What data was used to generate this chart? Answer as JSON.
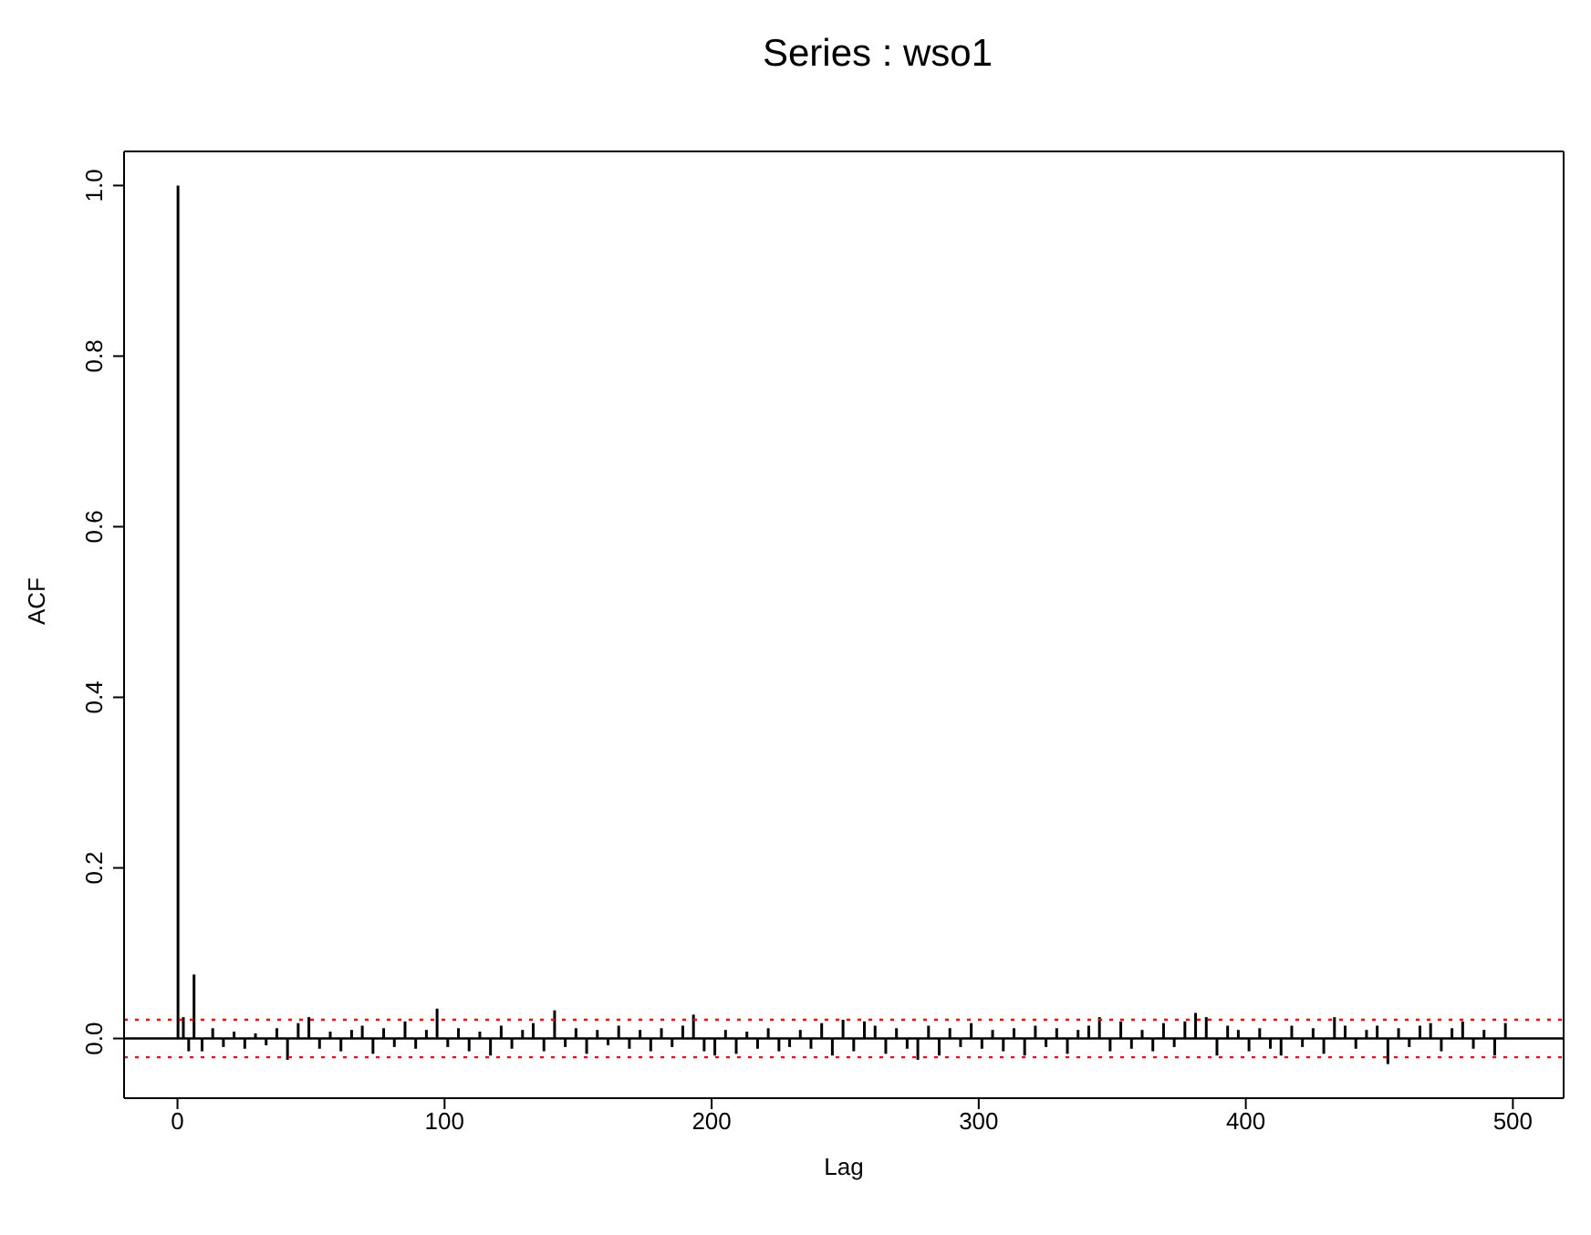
{
  "chart_data": {
    "type": "bar",
    "title": "Series : wso1",
    "xlabel": "Lag",
    "ylabel": "ACF",
    "x": [
      0,
      2,
      4,
      6,
      9,
      13,
      17,
      21,
      25,
      29,
      33,
      37,
      41,
      45,
      49,
      53,
      57,
      61,
      65,
      69,
      73,
      77,
      81,
      85,
      89,
      93,
      97,
      101,
      105,
      109,
      113,
      117,
      121,
      125,
      129,
      133,
      137,
      141,
      145,
      149,
      153,
      157,
      161,
      165,
      169,
      173,
      177,
      181,
      185,
      189,
      193,
      197,
      201,
      205,
      209,
      213,
      217,
      221,
      225,
      229,
      233,
      237,
      241,
      245,
      249,
      253,
      257,
      261,
      265,
      269,
      273,
      277,
      281,
      285,
      289,
      293,
      297,
      301,
      305,
      309,
      313,
      317,
      321,
      325,
      329,
      333,
      337,
      341,
      345,
      349,
      353,
      357,
      361,
      365,
      369,
      373,
      377,
      381,
      385,
      389,
      393,
      397,
      401,
      405,
      409,
      413,
      417,
      421,
      425,
      429,
      433,
      437,
      441,
      445,
      449,
      453,
      457,
      461,
      465,
      469,
      473,
      477,
      481,
      485,
      489,
      493,
      497
    ],
    "series": [
      {
        "color": "#000000",
        "values": [
          1.0,
          0.025,
          -0.015,
          0.075,
          -0.015,
          0.012,
          -0.01,
          0.008,
          -0.012,
          0.006,
          -0.008,
          0.012,
          -0.025,
          0.018,
          0.025,
          -0.012,
          0.008,
          -0.015,
          0.01,
          0.015,
          -0.018,
          0.012,
          -0.01,
          0.02,
          -0.012,
          0.01,
          0.035,
          -0.01,
          0.012,
          -0.015,
          0.008,
          -0.02,
          0.015,
          -0.012,
          0.01,
          0.018,
          -0.015,
          0.033,
          -0.01,
          0.012,
          -0.018,
          0.01,
          -0.008,
          0.015,
          -0.012,
          0.01,
          -0.015,
          0.012,
          -0.01,
          0.015,
          0.028,
          -0.015,
          -0.02,
          0.01,
          -0.018,
          0.008,
          -0.012,
          0.012,
          -0.015,
          -0.01,
          0.01,
          -0.012,
          0.018,
          -0.02,
          0.022,
          -0.015,
          0.02,
          0.015,
          -0.018,
          0.012,
          -0.012,
          -0.025,
          0.015,
          -0.02,
          0.012,
          -0.01,
          0.018,
          -0.012,
          0.01,
          -0.015,
          0.012,
          -0.02,
          0.015,
          -0.01,
          0.012,
          -0.018,
          0.01,
          0.015,
          0.025,
          -0.015,
          0.02,
          -0.012,
          0.01,
          -0.015,
          0.018,
          -0.01,
          0.02,
          0.03,
          0.025,
          -0.02,
          0.015,
          0.01,
          -0.015,
          0.012,
          -0.012,
          -0.02,
          0.015,
          -0.01,
          0.012,
          -0.018,
          0.025,
          0.015,
          -0.012,
          0.01,
          0.015,
          -0.03,
          0.012,
          -0.01,
          0.015,
          0.018,
          -0.015,
          0.012,
          0.02,
          -0.012,
          0.01,
          -0.02,
          0.018
        ]
      }
    ],
    "xlim": [
      -20,
      519
    ],
    "xticks": [
      0,
      100,
      200,
      300,
      400,
      500
    ],
    "ylim": [
      -0.07,
      1.04
    ],
    "yticks": [
      {
        "value": 0,
        "label": "0.0"
      },
      {
        "value": 0.2,
        "label": "0.2"
      },
      {
        "value": 0.4,
        "label": "0.4"
      },
      {
        "value": 0.6,
        "label": "0.6"
      },
      {
        "value": 0.8,
        "label": "0.8"
      },
      {
        "value": 1,
        "label": "1.0"
      }
    ],
    "ref_lines": [
      {
        "axis": "y",
        "value": 0,
        "color": "#000000",
        "line_style": "solid"
      },
      {
        "axis": "y",
        "value": 0.022,
        "color": "#ff0000",
        "line_style": "dotted"
      },
      {
        "axis": "y",
        "value": -0.022,
        "color": "#ff0000",
        "line_style": "dotted"
      }
    ],
    "grid": false
  }
}
